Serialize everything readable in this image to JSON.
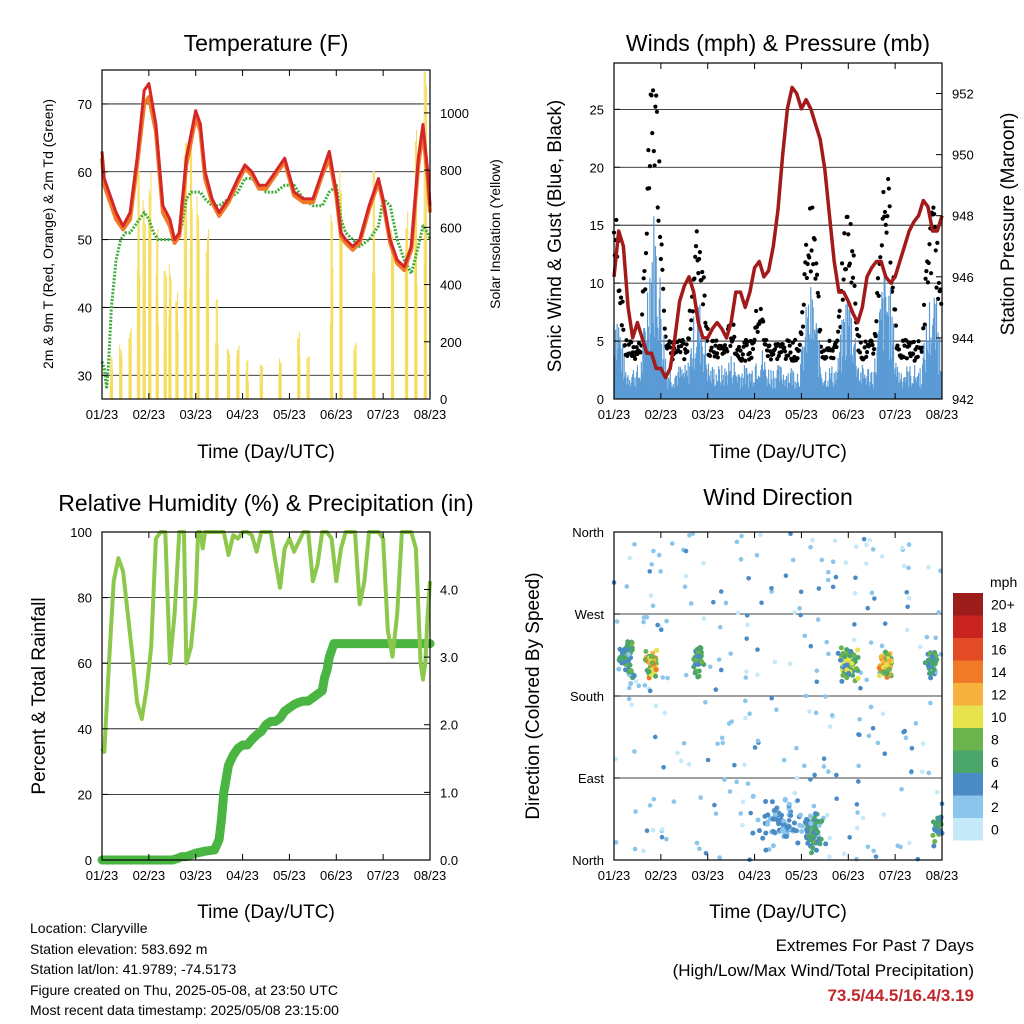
{
  "panels": {
    "temperature": {
      "title": "Temperature (F)",
      "ylabel_left": "2m & 9m T (Red, Orange) & 2m Td (Green)",
      "ylabel_right": "Solar Insolation (Yellow)",
      "xlabel": "Time (Day/UTC)"
    },
    "winds": {
      "title": "Winds (mph) & Pressure (mb)",
      "ylabel_left": "Sonic Wind & Gust (Blue, Black)",
      "ylabel_right": "Station Pressure (Maroon)",
      "xlabel": "Time (Day/UTC)"
    },
    "humidity": {
      "title": "Relative Humidity (%) & Precipitation (in)",
      "ylabel_left": "Percent & Total Rainfall",
      "xlabel": "Time (Day/UTC)"
    },
    "direction": {
      "title": "Wind Direction",
      "ylabel_left": "Direction (Colored By Speed)",
      "xlabel": "Time (Day/UTC)",
      "colorbar_title": "mph"
    }
  },
  "x_tick_labels": [
    "01/23",
    "02/23",
    "03/23",
    "04/23",
    "05/23",
    "06/23",
    "07/23",
    "08/23"
  ],
  "footer": {
    "location": "Location: Claryville",
    "elevation": "Station elevation: 583.692 m",
    "latlon": "Station lat/lon: 41.9789; -74.5173",
    "created": "Figure created on Thu, 2025-05-08, at 23:50 UTC",
    "recent": "Most recent data timestamp: 2025/05/08 23:15:00"
  },
  "extremes": {
    "line1": "Extremes For Past 7 Days",
    "line2": "(High/Low/Max Wind/Total Precipitation)",
    "values": "73.5/44.5/16.4/3.19"
  },
  "colors": {
    "temp2m": "#d62728",
    "temp9m": "#f07a28",
    "dewpoint": "#3fae3f",
    "solar": "#f5dc5a",
    "wind": "#5b9bd5",
    "gust": "#000000",
    "pressure": "#a31a1a",
    "rh": "#8cc84b",
    "precip": "#4ab543"
  },
  "chart_data": [
    {
      "type": "line",
      "name": "temperature",
      "x_range": [
        0,
        7
      ],
      "ylim_left": [
        26.5,
        75
      ],
      "ylim_right": [
        0,
        1150
      ],
      "yticks_left": [
        30,
        40,
        50,
        60,
        70
      ],
      "yticks_right": [
        0,
        200,
        400,
        600,
        800,
        1000
      ],
      "series": [
        {
          "key": "temp2m",
          "x": [
            0,
            0.05,
            0.15,
            0.3,
            0.45,
            0.6,
            0.75,
            0.9,
            1.0,
            1.15,
            1.3,
            1.45,
            1.55,
            1.65,
            1.8,
            2.0,
            2.1,
            2.2,
            2.35,
            2.5,
            2.7,
            2.9,
            3.05,
            3.2,
            3.35,
            3.5,
            3.7,
            3.9,
            4.1,
            4.3,
            4.5,
            4.7,
            4.85,
            5.0,
            5.1,
            5.2,
            5.35,
            5.5,
            5.7,
            5.9,
            6.0,
            6.15,
            6.3,
            6.45,
            6.6,
            6.75,
            6.85,
            6.95,
            7.0
          ],
          "y": [
            63,
            59,
            57,
            54,
            52,
            54,
            62,
            72,
            73,
            67,
            55,
            53,
            50,
            51,
            62,
            69,
            67,
            60,
            56,
            54,
            56,
            59,
            61,
            60,
            58,
            58,
            60,
            62,
            57,
            56,
            56,
            60,
            63,
            57,
            51,
            50,
            49,
            50,
            55,
            59,
            56,
            50,
            47,
            46,
            49,
            62,
            67,
            60,
            55
          ]
        },
        {
          "key": "temp9m",
          "x": [
            0,
            0.05,
            0.15,
            0.3,
            0.45,
            0.6,
            0.75,
            0.9,
            1.0,
            1.15,
            1.3,
            1.45,
            1.55,
            1.65,
            1.8,
            2.0,
            2.1,
            2.2,
            2.35,
            2.5,
            2.7,
            2.9,
            3.05,
            3.2,
            3.35,
            3.5,
            3.7,
            3.9,
            4.1,
            4.3,
            4.5,
            4.7,
            4.85,
            5.0,
            5.1,
            5.2,
            5.35,
            5.5,
            5.7,
            5.9,
            6.0,
            6.15,
            6.3,
            6.45,
            6.6,
            6.75,
            6.85,
            6.95,
            7.0
          ],
          "y": [
            62,
            58,
            56,
            53,
            51.5,
            53,
            61,
            70,
            71,
            66,
            54,
            52,
            49.5,
            50.5,
            61,
            68,
            66,
            59,
            55.5,
            53.5,
            55.5,
            58.5,
            60.5,
            59.5,
            57.5,
            57.5,
            59.5,
            61.5,
            56.5,
            55.5,
            55.5,
            59.5,
            62,
            56.5,
            50.5,
            49.5,
            48.5,
            49.5,
            54.5,
            58.5,
            55.5,
            49.5,
            46.5,
            45.5,
            48.5,
            61,
            66,
            59,
            54
          ]
        },
        {
          "key": "dewpoint",
          "x": [
            0,
            0.05,
            0.1,
            0.15,
            0.2,
            0.3,
            0.4,
            0.5,
            0.6,
            0.7,
            0.8,
            0.9,
            1.0,
            1.1,
            1.2,
            1.3,
            1.4,
            1.5,
            1.6,
            1.7,
            1.8,
            1.9,
            2.0,
            2.1,
            2.2,
            2.35,
            2.5,
            2.7,
            2.9,
            3.05,
            3.2,
            3.35,
            3.5,
            3.7,
            3.9,
            4.1,
            4.3,
            4.5,
            4.7,
            4.85,
            5.0,
            5.1,
            5.2,
            5.35,
            5.5,
            5.7,
            5.9,
            6.0,
            6.15,
            6.3,
            6.45,
            6.6,
            6.75,
            6.85,
            6.95,
            7.0
          ],
          "y": [
            32,
            31,
            28,
            33,
            40,
            47,
            50,
            51,
            51,
            52,
            53,
            54,
            53,
            51,
            50,
            50,
            50,
            50,
            50,
            52,
            56,
            57,
            57,
            57,
            56,
            55,
            55,
            56,
            57,
            59,
            59,
            58,
            57,
            57,
            58,
            58,
            56,
            55,
            55,
            57,
            58,
            53,
            51,
            50,
            49,
            50,
            52,
            56,
            55,
            50,
            47,
            45,
            49,
            52,
            51,
            50
          ]
        },
        {
          "key": "solar",
          "type": "area",
          "axis": "right",
          "x": [
            0.2,
            0.3,
            0.4,
            0.5,
            0.6,
            0.7,
            0.78,
            0.82,
            0.9,
            0.98,
            1.02,
            1.1,
            1.18,
            1.3,
            1.35,
            1.4,
            1.45,
            1.55,
            1.6,
            1.7,
            1.78,
            1.82,
            1.9,
            2.0,
            2.05,
            2.15,
            2.25,
            2.35,
            2.45,
            2.55,
            2.7,
            2.8,
            2.9,
            3.0,
            3.1,
            3.2,
            3.4,
            3.6,
            3.8,
            4.0,
            4.2,
            4.3,
            4.4,
            4.6,
            4.9,
            5.0,
            5.1,
            5.2,
            5.4,
            5.6,
            5.8,
            6.0,
            6.2,
            6.4,
            6.5,
            6.6,
            6.7,
            6.8,
            6.9,
            7.0
          ],
          "y": [
            150,
            0,
            200,
            0,
            250,
            0,
            800,
            0,
            700,
            0,
            850,
            0,
            600,
            0,
            450,
            0,
            500,
            0,
            400,
            0,
            900,
            0,
            950,
            0,
            750,
            0,
            600,
            0,
            350,
            0,
            180,
            0,
            200,
            0,
            140,
            0,
            120,
            0,
            150,
            0,
            250,
            0,
            150,
            0,
            650,
            0,
            850,
            0,
            200,
            0,
            800,
            0,
            600,
            0,
            700,
            0,
            950,
            0,
            1150,
            0
          ]
        }
      ]
    },
    {
      "type": "line",
      "name": "winds_pressure",
      "x_range": [
        0,
        7
      ],
      "ylim_left": [
        0,
        29
      ],
      "ylim_right": [
        942,
        953
      ],
      "yticks_left": [
        0,
        5,
        10,
        15,
        20,
        25
      ],
      "yticks_right": [
        942,
        944,
        946,
        948,
        950,
        952
      ],
      "series": [
        {
          "key": "pressure",
          "axis": "right",
          "x": [
            0,
            0.1,
            0.2,
            0.3,
            0.4,
            0.5,
            0.6,
            0.7,
            0.8,
            0.9,
            1.0,
            1.1,
            1.2,
            1.3,
            1.4,
            1.5,
            1.6,
            1.7,
            1.8,
            1.9,
            2.0,
            2.1,
            2.2,
            2.3,
            2.4,
            2.5,
            2.6,
            2.7,
            2.8,
            2.9,
            3.0,
            3.1,
            3.2,
            3.3,
            3.4,
            3.5,
            3.6,
            3.7,
            3.8,
            3.9,
            4.0,
            4.1,
            4.2,
            4.3,
            4.4,
            4.5,
            4.6,
            4.7,
            4.8,
            4.9,
            5.0,
            5.1,
            5.2,
            5.3,
            5.4,
            5.5,
            5.6,
            5.7,
            5.8,
            5.9,
            6.0,
            6.1,
            6.2,
            6.3,
            6.4,
            6.5,
            6.6,
            6.7,
            6.8,
            6.9,
            7.0
          ],
          "y": [
            946,
            947.5,
            947,
            945,
            944,
            944.5,
            944,
            943.5,
            943.5,
            943,
            943,
            942.7,
            943,
            944,
            945.2,
            945.7,
            946,
            945.5,
            944.5,
            944,
            944,
            944.3,
            944.5,
            944.3,
            944,
            944.5,
            945.5,
            945.5,
            945,
            945.5,
            946.3,
            946.5,
            946,
            946.2,
            947,
            948.2,
            950,
            951.5,
            952.2,
            952,
            951.5,
            951.8,
            951.5,
            951,
            950.5,
            949.5,
            948,
            946.5,
            945.5,
            945.5,
            945.2,
            944.8,
            944.5,
            945,
            946,
            946.3,
            946.5,
            946.5,
            946,
            945.8,
            946,
            946.5,
            947,
            947.5,
            947.8,
            948,
            948.5,
            948.3,
            947.5,
            947.5,
            948
          ]
        }
      ]
    },
    {
      "type": "line",
      "name": "humidity_precip",
      "x_range": [
        0,
        7
      ],
      "ylim_left": [
        0,
        100
      ],
      "ylim_right": [
        0,
        4.85
      ],
      "yticks_left": [
        0,
        20,
        40,
        60,
        80,
        100
      ],
      "yticks_right": [
        0.0,
        1.0,
        2.0,
        3.0,
        4.0
      ],
      "series": [
        {
          "key": "rh",
          "x": [
            0,
            0.05,
            0.15,
            0.25,
            0.35,
            0.45,
            0.55,
            0.65,
            0.75,
            0.85,
            0.95,
            1.05,
            1.15,
            1.25,
            1.35,
            1.45,
            1.55,
            1.65,
            1.7,
            1.75,
            1.8,
            1.9,
            2.0,
            2.05,
            2.1,
            2.15,
            2.2,
            2.3,
            2.45,
            2.6,
            2.7,
            2.8,
            2.9,
            3.0,
            3.1,
            3.2,
            3.3,
            3.4,
            3.5,
            3.6,
            3.7,
            3.8,
            3.9,
            4.0,
            4.1,
            4.2,
            4.3,
            4.4,
            4.5,
            4.6,
            4.7,
            4.8,
            4.9,
            5.0,
            5.1,
            5.2,
            5.3,
            5.4,
            5.5,
            5.6,
            5.7,
            5.8,
            5.9,
            6.0,
            6.1,
            6.2,
            6.3,
            6.4,
            6.5,
            6.6,
            6.7,
            6.8,
            6.85,
            6.9,
            6.95,
            7.0
          ],
          "y": [
            34,
            33,
            60,
            85,
            92,
            88,
            75,
            62,
            48,
            43,
            52,
            65,
            98,
            100,
            100,
            60,
            75,
            100,
            100,
            100,
            60,
            65,
            80,
            100,
            100,
            95,
            100,
            100,
            100,
            100,
            93,
            99,
            98,
            100,
            100,
            99,
            94,
            100,
            100,
            100,
            91,
            83,
            95,
            98,
            94,
            97,
            100,
            100,
            85,
            90,
            100,
            100,
            98,
            85,
            95,
            100,
            100,
            100,
            78,
            85,
            100,
            100,
            100,
            98,
            70,
            62,
            75,
            100,
            100,
            100,
            95,
            60,
            55,
            60,
            75,
            85
          ]
        },
        {
          "key": "precip",
          "axis": "right",
          "x": [
            0,
            0.5,
            1.0,
            1.3,
            1.5,
            1.6,
            1.7,
            1.8,
            2.0,
            2.2,
            2.4,
            2.5,
            2.55,
            2.6,
            2.7,
            2.8,
            2.9,
            3.0,
            3.1,
            3.2,
            3.3,
            3.4,
            3.5,
            3.6,
            3.7,
            3.8,
            3.9,
            4.0,
            4.1,
            4.2,
            4.3,
            4.4,
            4.5,
            4.6,
            4.7,
            4.75,
            4.8,
            4.85,
            4.9,
            4.95,
            5.0,
            5.5,
            6.0,
            6.5,
            7.0
          ],
          "y": [
            0,
            0,
            0,
            0,
            0,
            0.02,
            0.05,
            0.05,
            0.1,
            0.13,
            0.15,
            0.3,
            0.6,
            1.0,
            1.4,
            1.55,
            1.65,
            1.7,
            1.7,
            1.78,
            1.85,
            1.9,
            2.0,
            2.05,
            2.05,
            2.1,
            2.2,
            2.25,
            2.3,
            2.33,
            2.35,
            2.35,
            2.4,
            2.45,
            2.5,
            2.7,
            2.8,
            3.0,
            3.1,
            3.2,
            3.2,
            3.2,
            3.2,
            3.2,
            3.2
          ]
        }
      ]
    },
    {
      "type": "scatter",
      "name": "wind_direction",
      "x_range": [
        0,
        7
      ],
      "ylim": [
        0,
        360
      ],
      "yticks": [
        0,
        90,
        180,
        270,
        360
      ],
      "ytick_labels": [
        "North",
        "East",
        "South",
        "West",
        "North"
      ],
      "colorbar": {
        "labels": [
          "0",
          "2",
          "4",
          "6",
          "8",
          "10",
          "12",
          "14",
          "16",
          "18",
          "20+"
        ],
        "colors": [
          "#c6e9f8",
          "#8cc5ec",
          "#4a8bc6",
          "#4aa56a",
          "#6ab34d",
          "#e6e24c",
          "#f6b23c",
          "#f07a28",
          "#e34a26",
          "#c8231f",
          "#9c1b1b"
        ]
      },
      "clusters": [
        {
          "x": 0.25,
          "y": 220,
          "spread": [
            0.25,
            30
          ],
          "speed": 5,
          "n": 60
        },
        {
          "x": 0.8,
          "y": 215,
          "spread": [
            0.15,
            20
          ],
          "speed": 10,
          "n": 70
        },
        {
          "x": 1.8,
          "y": 220,
          "spread": [
            0.15,
            25
          ],
          "speed": 6,
          "n": 50
        },
        {
          "x": 5.0,
          "y": 215,
          "spread": [
            0.25,
            25
          ],
          "speed": 7,
          "n": 70
        },
        {
          "x": 5.8,
          "y": 215,
          "spread": [
            0.2,
            20
          ],
          "speed": 9,
          "n": 70
        },
        {
          "x": 6.8,
          "y": 215,
          "spread": [
            0.2,
            25
          ],
          "speed": 5,
          "n": 40
        },
        {
          "x": 4.25,
          "y": 30,
          "spread": [
            0.3,
            25
          ],
          "speed": 5,
          "n": 80
        },
        {
          "x": 3.6,
          "y": 40,
          "spread": [
            0.7,
            35
          ],
          "speed": 3,
          "n": 90
        },
        {
          "x": 6.9,
          "y": 35,
          "spread": [
            0.15,
            25
          ],
          "speed": 5,
          "n": 30
        }
      ]
    }
  ]
}
